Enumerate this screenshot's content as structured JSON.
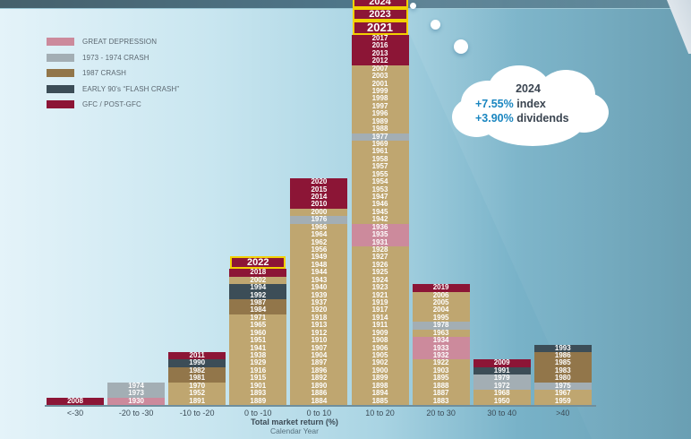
{
  "colors": {
    "normal": "#bfa670",
    "great_depression": "#cc8a9c",
    "crash_1973_1974": "#a3aeb4",
    "crash_1987": "#92764a",
    "flash_crash_90s": "#3c4d57",
    "gfc": "#8c1536",
    "highlight_border": "#f2d100",
    "cloud_pct": "#1a86c0"
  },
  "legend": [
    {
      "key": "great_depression",
      "label": "GREAT DEPRESSION"
    },
    {
      "key": "crash_1973_1974",
      "label": "1973 - 1974 CRASH"
    },
    {
      "key": "crash_1987",
      "label": "1987 CRASH"
    },
    {
      "key": "flash_crash_90s",
      "label": "EARLY 90's “FLASH CRASH”"
    },
    {
      "key": "gfc",
      "label": "GFC / POST-GFC"
    }
  ],
  "callout": {
    "year": "2024",
    "index_pct": "+7.55%",
    "index_label": "index",
    "div_pct": "+3.90%",
    "div_label": "dividends"
  },
  "chart_data": {
    "type": "table",
    "title": "",
    "xlabel": "Total market return (%)",
    "xsublabel": "Calendar Year",
    "categories": [
      "<-30",
      "-20 to -30",
      "-10 to -20",
      "0 to -10",
      "0 to 10",
      "10 to 20",
      "20 to 30",
      "30 to 40",
      ">40"
    ],
    "columns": [
      {
        "category": "<-30",
        "highlighted": [],
        "years": [
          {
            "y": "2008",
            "c": "gfc"
          }
        ]
      },
      {
        "category": "-20 to -30",
        "highlighted": [],
        "years": [
          {
            "y": "1974",
            "c": "crash_1973_1974"
          },
          {
            "y": "1973",
            "c": "crash_1973_1974"
          },
          {
            "y": "1930",
            "c": "great_depression"
          }
        ]
      },
      {
        "category": "-10 to -20",
        "highlighted": [],
        "years": [
          {
            "y": "2011",
            "c": "gfc"
          },
          {
            "y": "1990",
            "c": "flash_crash_90s"
          },
          {
            "y": "1982",
            "c": "crash_1987"
          },
          {
            "y": "1981",
            "c": "crash_1987"
          },
          {
            "y": "1970",
            "c": "normal"
          },
          {
            "y": "1952",
            "c": "normal"
          },
          {
            "y": "1891",
            "c": "normal"
          }
        ]
      },
      {
        "category": "0 to -10",
        "highlighted": [
          "2022"
        ],
        "years": [
          {
            "y": "2018",
            "c": "gfc"
          },
          {
            "y": "2002",
            "c": "normal"
          },
          {
            "y": "1994",
            "c": "flash_crash_90s"
          },
          {
            "y": "1992",
            "c": "flash_crash_90s"
          },
          {
            "y": "1987",
            "c": "crash_1987"
          },
          {
            "y": "1984",
            "c": "crash_1987"
          },
          {
            "y": "1971",
            "c": "normal"
          },
          {
            "y": "1965",
            "c": "normal"
          },
          {
            "y": "1960",
            "c": "normal"
          },
          {
            "y": "1951",
            "c": "normal"
          },
          {
            "y": "1941",
            "c": "normal"
          },
          {
            "y": "1938",
            "c": "normal"
          },
          {
            "y": "1929",
            "c": "normal"
          },
          {
            "y": "1916",
            "c": "normal"
          },
          {
            "y": "1915",
            "c": "normal"
          },
          {
            "y": "1901",
            "c": "normal"
          },
          {
            "y": "1893",
            "c": "normal"
          },
          {
            "y": "1889",
            "c": "normal"
          }
        ]
      },
      {
        "category": "0 to 10",
        "highlighted": [],
        "years": [
          {
            "y": "2020",
            "c": "gfc"
          },
          {
            "y": "2015",
            "c": "gfc"
          },
          {
            "y": "2014",
            "c": "gfc"
          },
          {
            "y": "2010",
            "c": "gfc"
          },
          {
            "y": "2000",
            "c": "normal"
          },
          {
            "y": "1976",
            "c": "crash_1973_1974"
          },
          {
            "y": "1966",
            "c": "normal"
          },
          {
            "y": "1964",
            "c": "normal"
          },
          {
            "y": "1962",
            "c": "normal"
          },
          {
            "y": "1956",
            "c": "normal"
          },
          {
            "y": "1949",
            "c": "normal"
          },
          {
            "y": "1948",
            "c": "normal"
          },
          {
            "y": "1944",
            "c": "normal"
          },
          {
            "y": "1943",
            "c": "normal"
          },
          {
            "y": "1940",
            "c": "normal"
          },
          {
            "y": "1939",
            "c": "normal"
          },
          {
            "y": "1937",
            "c": "normal"
          },
          {
            "y": "1920",
            "c": "normal"
          },
          {
            "y": "1918",
            "c": "normal"
          },
          {
            "y": "1913",
            "c": "normal"
          },
          {
            "y": "1912",
            "c": "normal"
          },
          {
            "y": "1910",
            "c": "normal"
          },
          {
            "y": "1907",
            "c": "normal"
          },
          {
            "y": "1904",
            "c": "normal"
          },
          {
            "y": "1897",
            "c": "normal"
          },
          {
            "y": "1896",
            "c": "normal"
          },
          {
            "y": "1892",
            "c": "normal"
          },
          {
            "y": "1890",
            "c": "normal"
          },
          {
            "y": "1886",
            "c": "normal"
          },
          {
            "y": "1884",
            "c": "normal"
          }
        ]
      },
      {
        "category": "10 to 20",
        "highlighted": [
          "2024",
          "2023",
          "2021"
        ],
        "years": [
          {
            "y": "2017",
            "c": "gfc"
          },
          {
            "y": "2016",
            "c": "gfc"
          },
          {
            "y": "2013",
            "c": "gfc"
          },
          {
            "y": "2012",
            "c": "gfc"
          },
          {
            "y": "2007",
            "c": "normal"
          },
          {
            "y": "2003",
            "c": "normal"
          },
          {
            "y": "2001",
            "c": "normal"
          },
          {
            "y": "1999",
            "c": "normal"
          },
          {
            "y": "1998",
            "c": "normal"
          },
          {
            "y": "1997",
            "c": "normal"
          },
          {
            "y": "1996",
            "c": "normal"
          },
          {
            "y": "1989",
            "c": "normal"
          },
          {
            "y": "1988",
            "c": "normal"
          },
          {
            "y": "1977",
            "c": "crash_1973_1974"
          },
          {
            "y": "1969",
            "c": "normal"
          },
          {
            "y": "1961",
            "c": "normal"
          },
          {
            "y": "1958",
            "c": "normal"
          },
          {
            "y": "1957",
            "c": "normal"
          },
          {
            "y": "1955",
            "c": "normal"
          },
          {
            "y": "1954",
            "c": "normal"
          },
          {
            "y": "1953",
            "c": "normal"
          },
          {
            "y": "1947",
            "c": "normal"
          },
          {
            "y": "1946",
            "c": "normal"
          },
          {
            "y": "1945",
            "c": "normal"
          },
          {
            "y": "1942",
            "c": "normal"
          },
          {
            "y": "1936",
            "c": "great_depression"
          },
          {
            "y": "1935",
            "c": "great_depression"
          },
          {
            "y": "1931",
            "c": "great_depression"
          },
          {
            "y": "1928",
            "c": "normal"
          },
          {
            "y": "1927",
            "c": "normal"
          },
          {
            "y": "1926",
            "c": "normal"
          },
          {
            "y": "1925",
            "c": "normal"
          },
          {
            "y": "1924",
            "c": "normal"
          },
          {
            "y": "1923",
            "c": "normal"
          },
          {
            "y": "1921",
            "c": "normal"
          },
          {
            "y": "1919",
            "c": "normal"
          },
          {
            "y": "1917",
            "c": "normal"
          },
          {
            "y": "1914",
            "c": "normal"
          },
          {
            "y": "1911",
            "c": "normal"
          },
          {
            "y": "1909",
            "c": "normal"
          },
          {
            "y": "1908",
            "c": "normal"
          },
          {
            "y": "1906",
            "c": "normal"
          },
          {
            "y": "1905",
            "c": "normal"
          },
          {
            "y": "1902",
            "c": "normal"
          },
          {
            "y": "1900",
            "c": "normal"
          },
          {
            "y": "1899",
            "c": "normal"
          },
          {
            "y": "1898",
            "c": "normal"
          },
          {
            "y": "1894",
            "c": "normal"
          },
          {
            "y": "1885",
            "c": "normal"
          }
        ]
      },
      {
        "category": "20 to 30",
        "highlighted": [],
        "years": [
          {
            "y": "2019",
            "c": "gfc"
          },
          {
            "y": "2006",
            "c": "normal"
          },
          {
            "y": "2005",
            "c": "normal"
          },
          {
            "y": "2004",
            "c": "normal"
          },
          {
            "y": "1995",
            "c": "normal"
          },
          {
            "y": "1978",
            "c": "crash_1973_1974"
          },
          {
            "y": "1963",
            "c": "normal"
          },
          {
            "y": "1934",
            "c": "great_depression"
          },
          {
            "y": "1933",
            "c": "great_depression"
          },
          {
            "y": "1932",
            "c": "great_depression"
          },
          {
            "y": "1922",
            "c": "normal"
          },
          {
            "y": "1903",
            "c": "normal"
          },
          {
            "y": "1895",
            "c": "normal"
          },
          {
            "y": "1888",
            "c": "normal"
          },
          {
            "y": "1887",
            "c": "normal"
          },
          {
            "y": "1883",
            "c": "normal"
          }
        ]
      },
      {
        "category": "30 to 40",
        "highlighted": [],
        "years": [
          {
            "y": "2009",
            "c": "gfc"
          },
          {
            "y": "1991",
            "c": "flash_crash_90s"
          },
          {
            "y": "1979",
            "c": "crash_1973_1974"
          },
          {
            "y": "1972",
            "c": "crash_1973_1974"
          },
          {
            "y": "1968",
            "c": "normal"
          },
          {
            "y": "1950",
            "c": "normal"
          }
        ]
      },
      {
        "category": ">40",
        "highlighted": [],
        "years": [
          {
            "y": "1993",
            "c": "flash_crash_90s"
          },
          {
            "y": "1986",
            "c": "crash_1987"
          },
          {
            "y": "1985",
            "c": "crash_1987"
          },
          {
            "y": "1983",
            "c": "crash_1987"
          },
          {
            "y": "1980",
            "c": "crash_1987"
          },
          {
            "y": "1975",
            "c": "crash_1973_1974"
          },
          {
            "y": "1967",
            "c": "normal"
          },
          {
            "y": "1959",
            "c": "normal"
          }
        ]
      }
    ]
  }
}
